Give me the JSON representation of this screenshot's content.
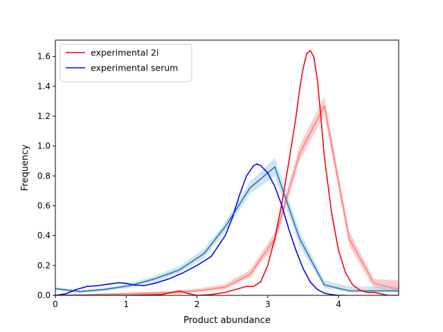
{
  "chart_data": {
    "type": "line",
    "title": "",
    "xlabel": "Product abundance",
    "ylabel": "Frequency",
    "xlim": [
      0,
      4.85
    ],
    "ylim": [
      0,
      1.71
    ],
    "x_ticks": [
      "0",
      "1",
      "2",
      "3",
      "4"
    ],
    "y_ticks": [
      "0.0",
      "0.2",
      "0.4",
      "0.6",
      "0.8",
      "1.0",
      "1.2",
      "1.4",
      "1.6"
    ],
    "legend_position": "top-left",
    "grid": false,
    "series": [
      {
        "name": "experimental 2i",
        "color": "#ff0000",
        "x": [
          0.0,
          0.5,
          1.0,
          1.5,
          1.65,
          1.75,
          1.85,
          2.0,
          2.2,
          2.4,
          2.55,
          2.7,
          2.8,
          2.9,
          3.0,
          3.1,
          3.2,
          3.3,
          3.4,
          3.45,
          3.5,
          3.55,
          3.6,
          3.65,
          3.7,
          3.75,
          3.8,
          3.9,
          4.0,
          4.1,
          4.2,
          4.3,
          4.4,
          4.5,
          4.6,
          4.7,
          4.85
        ],
        "y": [
          0.0,
          0.0,
          0.0,
          0.005,
          0.02,
          0.03,
          0.015,
          0.0,
          0.005,
          0.02,
          0.04,
          0.06,
          0.06,
          0.09,
          0.2,
          0.38,
          0.62,
          0.9,
          1.2,
          1.38,
          1.52,
          1.62,
          1.64,
          1.6,
          1.45,
          1.2,
          0.93,
          0.56,
          0.3,
          0.15,
          0.07,
          0.035,
          0.02,
          0.02,
          0.01,
          0.0,
          0.0
        ]
      },
      {
        "name": "experimental serum",
        "color": "#0000ff",
        "x": [
          0.0,
          0.15,
          0.3,
          0.45,
          0.6,
          0.75,
          0.9,
          1.0,
          1.1,
          1.25,
          1.4,
          1.6,
          1.8,
          2.0,
          2.2,
          2.4,
          2.5,
          2.6,
          2.7,
          2.8,
          2.85,
          2.9,
          3.0,
          3.1,
          3.2,
          3.3,
          3.4,
          3.5,
          3.6,
          3.7,
          3.8,
          3.9,
          4.0,
          4.1
        ],
        "y": [
          0.0,
          0.01,
          0.04,
          0.06,
          0.065,
          0.075,
          0.085,
          0.08,
          0.07,
          0.065,
          0.08,
          0.11,
          0.15,
          0.2,
          0.26,
          0.4,
          0.52,
          0.67,
          0.8,
          0.87,
          0.88,
          0.87,
          0.82,
          0.73,
          0.6,
          0.44,
          0.3,
          0.18,
          0.09,
          0.04,
          0.015,
          0.005,
          0.0,
          0.0
        ]
      },
      {
        "color": "#ff7f7f",
        "band_color": "#ff9999",
        "x": [
          0.0,
          1.4,
          1.7,
          2.0,
          2.4,
          2.75,
          3.1,
          3.45,
          3.8,
          4.15,
          4.5,
          4.85
        ],
        "y": [
          0.0,
          0.015,
          0.02,
          0.03,
          0.055,
          0.14,
          0.38,
          0.95,
          1.27,
          0.38,
          0.08,
          0.04
        ],
        "lower": [
          0.0,
          0.005,
          0.01,
          0.02,
          0.04,
          0.12,
          0.34,
          0.9,
          1.21,
          0.33,
          0.05,
          0.02
        ],
        "upper": [
          0.0,
          0.025,
          0.03,
          0.045,
          0.075,
          0.17,
          0.42,
          1.0,
          1.33,
          0.43,
          0.11,
          0.1
        ]
      },
      {
        "color": "#1f77b4",
        "band_color": "#9ecae1",
        "x": [
          0.0,
          0.35,
          0.7,
          1.05,
          1.4,
          1.75,
          2.1,
          2.4,
          2.75,
          3.1,
          3.45,
          3.8,
          4.15,
          4.5,
          4.85
        ],
        "y": [
          0.045,
          0.025,
          0.04,
          0.065,
          0.11,
          0.17,
          0.28,
          0.46,
          0.72,
          0.86,
          0.38,
          0.07,
          0.03,
          0.03,
          0.03
        ],
        "lower": [
          0.035,
          0.015,
          0.03,
          0.05,
          0.09,
          0.15,
          0.25,
          0.43,
          0.68,
          0.8,
          0.33,
          0.05,
          0.02,
          0.02,
          0.02
        ],
        "upper": [
          0.055,
          0.035,
          0.05,
          0.08,
          0.13,
          0.195,
          0.31,
          0.49,
          0.76,
          0.92,
          0.43,
          0.1,
          0.06,
          0.06,
          0.06
        ]
      }
    ]
  }
}
